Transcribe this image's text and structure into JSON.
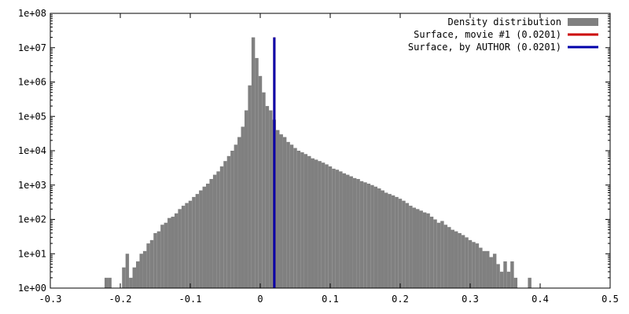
{
  "chart_data": {
    "type": "bar",
    "x_scale": "linear",
    "y_scale": "log",
    "xlim": [
      -0.3,
      0.5
    ],
    "ylim": [
      1,
      100000000
    ],
    "x_ticks": [
      "-0.3",
      "-0.2",
      "-0.1",
      "0",
      "0.1",
      "0.2",
      "0.3",
      "0.4",
      "0.5"
    ],
    "y_ticks": [
      "1e+00",
      "1e+01",
      "1e+02",
      "1e+03",
      "1e+04",
      "1e+05",
      "1e+06",
      "1e+07",
      "1e+08"
    ],
    "grid": false,
    "legend_position": "top-right",
    "histogram": {
      "name": "Density distribution",
      "color": "#808080",
      "bin_width": 0.005,
      "x": [
        -0.22,
        -0.215,
        -0.195,
        -0.19,
        -0.185,
        -0.18,
        -0.175,
        -0.17,
        -0.165,
        -0.16,
        -0.155,
        -0.15,
        -0.145,
        -0.14,
        -0.135,
        -0.13,
        -0.125,
        -0.12,
        -0.115,
        -0.11,
        -0.105,
        -0.1,
        -0.095,
        -0.09,
        -0.085,
        -0.08,
        -0.075,
        -0.07,
        -0.065,
        -0.06,
        -0.055,
        -0.05,
        -0.045,
        -0.04,
        -0.035,
        -0.03,
        -0.025,
        -0.02,
        -0.015,
        -0.01,
        -0.005,
        0.0,
        0.005,
        0.01,
        0.015,
        0.02,
        0.025,
        0.03,
        0.035,
        0.04,
        0.045,
        0.05,
        0.055,
        0.06,
        0.065,
        0.07,
        0.075,
        0.08,
        0.085,
        0.09,
        0.095,
        0.1,
        0.105,
        0.11,
        0.115,
        0.12,
        0.125,
        0.13,
        0.135,
        0.14,
        0.145,
        0.15,
        0.155,
        0.16,
        0.165,
        0.17,
        0.175,
        0.18,
        0.185,
        0.19,
        0.195,
        0.2,
        0.205,
        0.21,
        0.215,
        0.22,
        0.225,
        0.23,
        0.235,
        0.24,
        0.245,
        0.25,
        0.255,
        0.26,
        0.265,
        0.27,
        0.275,
        0.28,
        0.285,
        0.29,
        0.295,
        0.3,
        0.305,
        0.31,
        0.315,
        0.32,
        0.325,
        0.33,
        0.335,
        0.34,
        0.345,
        0.35,
        0.355,
        0.36,
        0.365,
        0.385
      ],
      "values": [
        2,
        2,
        4,
        10,
        2,
        4,
        6,
        10,
        12,
        20,
        25,
        40,
        45,
        70,
        80,
        110,
        120,
        150,
        200,
        250,
        300,
        350,
        450,
        550,
        700,
        900,
        1100,
        1500,
        2000,
        2500,
        3500,
        5000,
        7000,
        10000,
        15000,
        25000,
        50000,
        150000,
        800000,
        20000000,
        5000000,
        1500000,
        500000,
        200000,
        150000,
        80000,
        40000,
        30000,
        25000,
        18000,
        15000,
        12000,
        10000,
        9000,
        8000,
        7000,
        6000,
        5500,
        5000,
        4500,
        4000,
        3500,
        3000,
        2800,
        2500,
        2200,
        2000,
        1800,
        1600,
        1500,
        1300,
        1200,
        1100,
        1000,
        900,
        800,
        700,
        600,
        550,
        500,
        450,
        400,
        350,
        300,
        250,
        220,
        200,
        180,
        160,
        150,
        120,
        100,
        80,
        90,
        70,
        60,
        50,
        45,
        40,
        35,
        30,
        25,
        22,
        20,
        15,
        12,
        12,
        8,
        10,
        5,
        3,
        6,
        3,
        6,
        2,
        2
      ]
    },
    "vlines": [
      {
        "name": "Surface, movie #1 (0.0201)",
        "x": 0.0201,
        "color": "#cc0000",
        "y_top": 20000000
      },
      {
        "name": "Surface, by AUTHOR (0.0201)",
        "x": 0.0201,
        "color": "#0000aa",
        "y_top": 20000000
      }
    ],
    "legend": [
      {
        "label": "Density distribution",
        "kind": "box",
        "color": "#808080"
      },
      {
        "label": "Surface, movie #1 (0.0201)",
        "kind": "line",
        "color": "#cc0000"
      },
      {
        "label": "Surface, by AUTHOR (0.0201)",
        "kind": "line",
        "color": "#0000aa"
      }
    ]
  }
}
